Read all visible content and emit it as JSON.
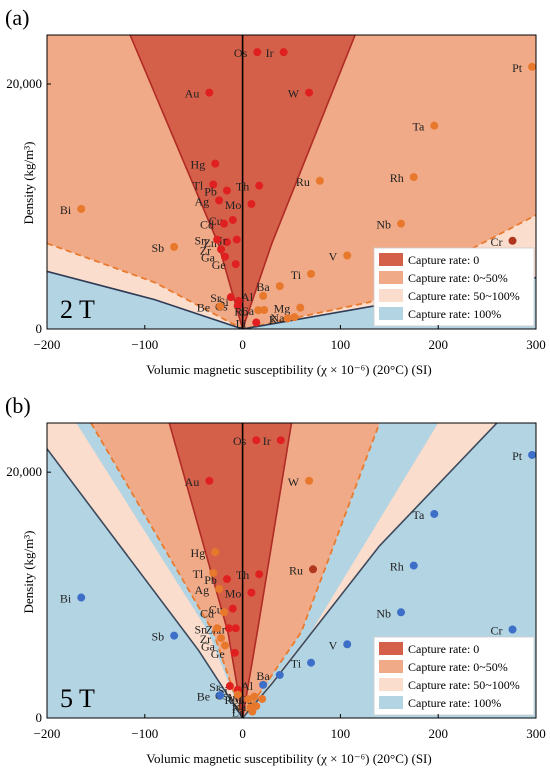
{
  "figure": {
    "panels": [
      {
        "panel_label": "(a)",
        "field_label": "2 T",
        "xlabel": "Volumic magnetic susceptibility (χ × 10⁻⁶) (20°C) (SI)",
        "ylabel": "Density (kg/m³)",
        "legend": [
          {
            "label": "Capture rate: 0",
            "color": "#d4604a"
          },
          {
            "label": "Capture rate: 0~50%",
            "color": "#f0aa87"
          },
          {
            "label": "Capture rate: 50~100%",
            "color": "#fbddcd"
          },
          {
            "label": "Capture rate: 100%",
            "color": "#b3d4e3"
          }
        ]
      },
      {
        "panel_label": "(b)",
        "field_label": "5 T",
        "xlabel": "Volumic magnetic susceptibility (χ × 10⁻⁶) (20°C) (SI)",
        "ylabel": "Density (kg/m³)",
        "legend": [
          {
            "label": "Capture rate: 0",
            "color": "#d4604a"
          },
          {
            "label": "Capture rate: 0~50%",
            "color": "#f0aa87"
          },
          {
            "label": "Capture rate: 50~100%",
            "color": "#fbddcd"
          },
          {
            "label": "Capture rate: 100%",
            "color": "#b3d4e3"
          }
        ]
      }
    ]
  },
  "chart_data": [
    {
      "type": "scatter",
      "title": "(a)",
      "annotation": "2 T",
      "xlabel": "Volumic magnetic susceptibility (χ × 10⁻⁶) (20°C) (SI)",
      "ylabel": "Density (kg/m³)",
      "xlim": [
        -200,
        300
      ],
      "ylim": [
        0,
        24000
      ],
      "xticks": [
        -200,
        -100,
        0,
        100,
        200,
        300
      ],
      "yticks": [
        0,
        20000
      ],
      "ytick_labels": [
        "0",
        "20,000"
      ],
      "legend_position": "bottom-right",
      "series": [
        {
          "name": "Capture rate: 0",
          "color": "#e02020",
          "points": [
            {
              "label": "Os",
              "x": 15,
              "y": 22600
            },
            {
              "label": "Ir",
              "x": 42,
              "y": 22600
            },
            {
              "label": "W",
              "x": 68,
              "y": 19300
            },
            {
              "label": "Au",
              "x": -34,
              "y": 19300
            },
            {
              "label": "Hg",
              "x": -28,
              "y": 13500
            },
            {
              "label": "Tl",
              "x": -30,
              "y": 11800
            },
            {
              "label": "Pb",
              "x": -16,
              "y": 11300
            },
            {
              "label": "Th",
              "x": 17,
              "y": 11700
            },
            {
              "label": "Ag",
              "x": -24,
              "y": 10500
            },
            {
              "label": "Mo",
              "x": 9,
              "y": 10200
            },
            {
              "label": "Cu",
              "x": -10,
              "y": 8900
            },
            {
              "label": "Cd",
              "x": -19,
              "y": 8600
            },
            {
              "label": "Zn",
              "x": -16,
              "y": 7100
            },
            {
              "label": "Ir",
              "x": -6,
              "y": 7300
            },
            {
              "label": "Sn",
              "x": -26,
              "y": 7300
            },
            {
              "label": "Zr",
              "x": -22,
              "y": 6500
            },
            {
              "label": "Ga",
              "x": -18,
              "y": 5900
            },
            {
              "label": "Ge",
              "x": -7,
              "y": 5300
            },
            {
              "label": "Sr",
              "x": -12,
              "y": 2600
            },
            {
              "label": "Cs",
              "x": -5,
              "y": 1900
            },
            {
              "label": "Li",
              "x": 14,
              "y": 530
            },
            {
              "label": "Si",
              "x": -4,
              "y": 2300
            }
          ]
        },
        {
          "name": "Capture rate: 0~50%",
          "color": "#e8782c",
          "points": [
            {
              "label": "Pt",
              "x": 296,
              "y": 21400
            },
            {
              "label": "Ta",
              "x": 196,
              "y": 16600
            },
            {
              "label": "Rh",
              "x": 175,
              "y": 12400
            },
            {
              "label": "Ru",
              "x": 79,
              "y": 12100
            },
            {
              "label": "Bi",
              "x": -165,
              "y": 9800
            },
            {
              "label": "Nb",
              "x": 162,
              "y": 8600
            },
            {
              "label": "Sb",
              "x": -70,
              "y": 6700
            },
            {
              "label": "V",
              "x": 107,
              "y": 6000
            },
            {
              "label": "Ti",
              "x": 70,
              "y": 4500
            },
            {
              "label": "Na",
              "x": 53,
              "y": 970
            },
            {
              "label": "Mg",
              "x": 59,
              "y": 1740
            },
            {
              "label": "K",
              "x": 46,
              "y": 860
            },
            {
              "label": "Ba",
              "x": 38,
              "y": 3500
            },
            {
              "label": "Al",
              "x": 21,
              "y": 2700
            },
            {
              "label": "Rb",
              "x": 16,
              "y": 1530
            },
            {
              "label": "Ca",
              "x": 22,
              "y": 1550
            },
            {
              "label": "Be",
              "x": -23,
              "y": 1850
            }
          ]
        },
        {
          "name": "Capture rate: 50~100%",
          "color": "#f4b89a",
          "points": []
        },
        {
          "name": "Capture rate: 100%",
          "color": "#3d6fc8",
          "points": []
        },
        {
          "name": "",
          "color": "#b0361e",
          "points": [
            {
              "label": "Cr",
              "x": 276,
              "y": 7200
            }
          ]
        }
      ]
    },
    {
      "type": "scatter",
      "title": "(b)",
      "annotation": "5 T",
      "xlabel": "Volumic magnetic susceptibility (χ × 10⁻⁶) (20°C) (SI)",
      "ylabel": "Density (kg/m³)",
      "xlim": [
        -200,
        300
      ],
      "ylim": [
        0,
        24000
      ],
      "xticks": [
        -200,
        -100,
        0,
        100,
        200,
        300
      ],
      "yticks": [
        0,
        20000
      ],
      "ytick_labels": [
        "0",
        "20,000"
      ],
      "legend_position": "bottom-right",
      "series": [
        {
          "name": "Capture rate: 0",
          "color": "#e02020",
          "points": [
            {
              "label": "Os",
              "x": 14,
              "y": 22600
            },
            {
              "label": "Ir",
              "x": 39,
              "y": 22600
            },
            {
              "label": "Au",
              "x": -34,
              "y": 19300
            },
            {
              "label": "Pb",
              "x": -16,
              "y": 11300
            },
            {
              "label": "Th",
              "x": 17,
              "y": 11700
            },
            {
              "label": "Mo",
              "x": 9,
              "y": 10200
            },
            {
              "label": "Cu",
              "x": -10,
              "y": 8900
            },
            {
              "label": "Zn",
              "x": -14,
              "y": 7300
            },
            {
              "label": "Ir",
              "x": -7,
              "y": 7300
            },
            {
              "label": "Ge",
              "x": -8,
              "y": 5300
            },
            {
              "label": "Sr",
              "x": -13,
              "y": 2600
            },
            {
              "label": "Si",
              "x": -5,
              "y": 2300
            }
          ]
        },
        {
          "name": "Capture rate: 0~50%",
          "color": "#e8782c",
          "points": [
            {
              "label": "W",
              "x": 68,
              "y": 19300
            },
            {
              "label": "Hg",
              "x": -28,
              "y": 13500
            },
            {
              "label": "Tl",
              "x": -30,
              "y": 11800
            },
            {
              "label": "Ag",
              "x": -24,
              "y": 10500
            },
            {
              "label": "Cd",
              "x": -19,
              "y": 8600
            },
            {
              "label": "Sn",
              "x": -26,
              "y": 7300
            },
            {
              "label": "Zr",
              "x": -22,
              "y": 6500
            },
            {
              "label": "Ga",
              "x": -18,
              "y": 5900
            },
            {
              "label": "Na",
              "x": 14,
              "y": 970
            },
            {
              "label": "K",
              "x": 8,
              "y": 860
            },
            {
              "label": "Mg",
              "x": 12,
              "y": 1740
            },
            {
              "label": "Ca",
              "x": 20,
              "y": 1550
            },
            {
              "label": "Rb",
              "x": 6,
              "y": 1530
            },
            {
              "label": "Li",
              "x": 10,
              "y": 530
            },
            {
              "label": "Cs",
              "x": -5,
              "y": 1900
            }
          ]
        },
        {
          "name": "Capture rate: 50~100%",
          "color": "#f4b89a",
          "points": []
        },
        {
          "name": "Capture rate: 100%",
          "color": "#3d6fc8",
          "points": [
            {
              "label": "Pt",
              "x": 296,
              "y": 21400
            },
            {
              "label": "Ta",
              "x": 196,
              "y": 16600
            },
            {
              "label": "Rh",
              "x": 175,
              "y": 12400
            },
            {
              "label": "Bi",
              "x": -165,
              "y": 9800
            },
            {
              "label": "Nb",
              "x": 162,
              "y": 8600
            },
            {
              "label": "Cr",
              "x": 276,
              "y": 7200
            },
            {
              "label": "Sb",
              "x": -70,
              "y": 6700
            },
            {
              "label": "V",
              "x": 107,
              "y": 6000
            },
            {
              "label": "Ti",
              "x": 70,
              "y": 4500
            },
            {
              "label": "Ba",
              "x": 38,
              "y": 3500
            },
            {
              "label": "Al",
              "x": 21,
              "y": 2700
            },
            {
              "label": "Be",
              "x": -23,
              "y": 1850
            }
          ]
        },
        {
          "name": "",
          "color": "#b0361e",
          "points": [
            {
              "label": "Ru",
              "x": 72,
              "y": 12100
            }
          ]
        }
      ]
    }
  ]
}
